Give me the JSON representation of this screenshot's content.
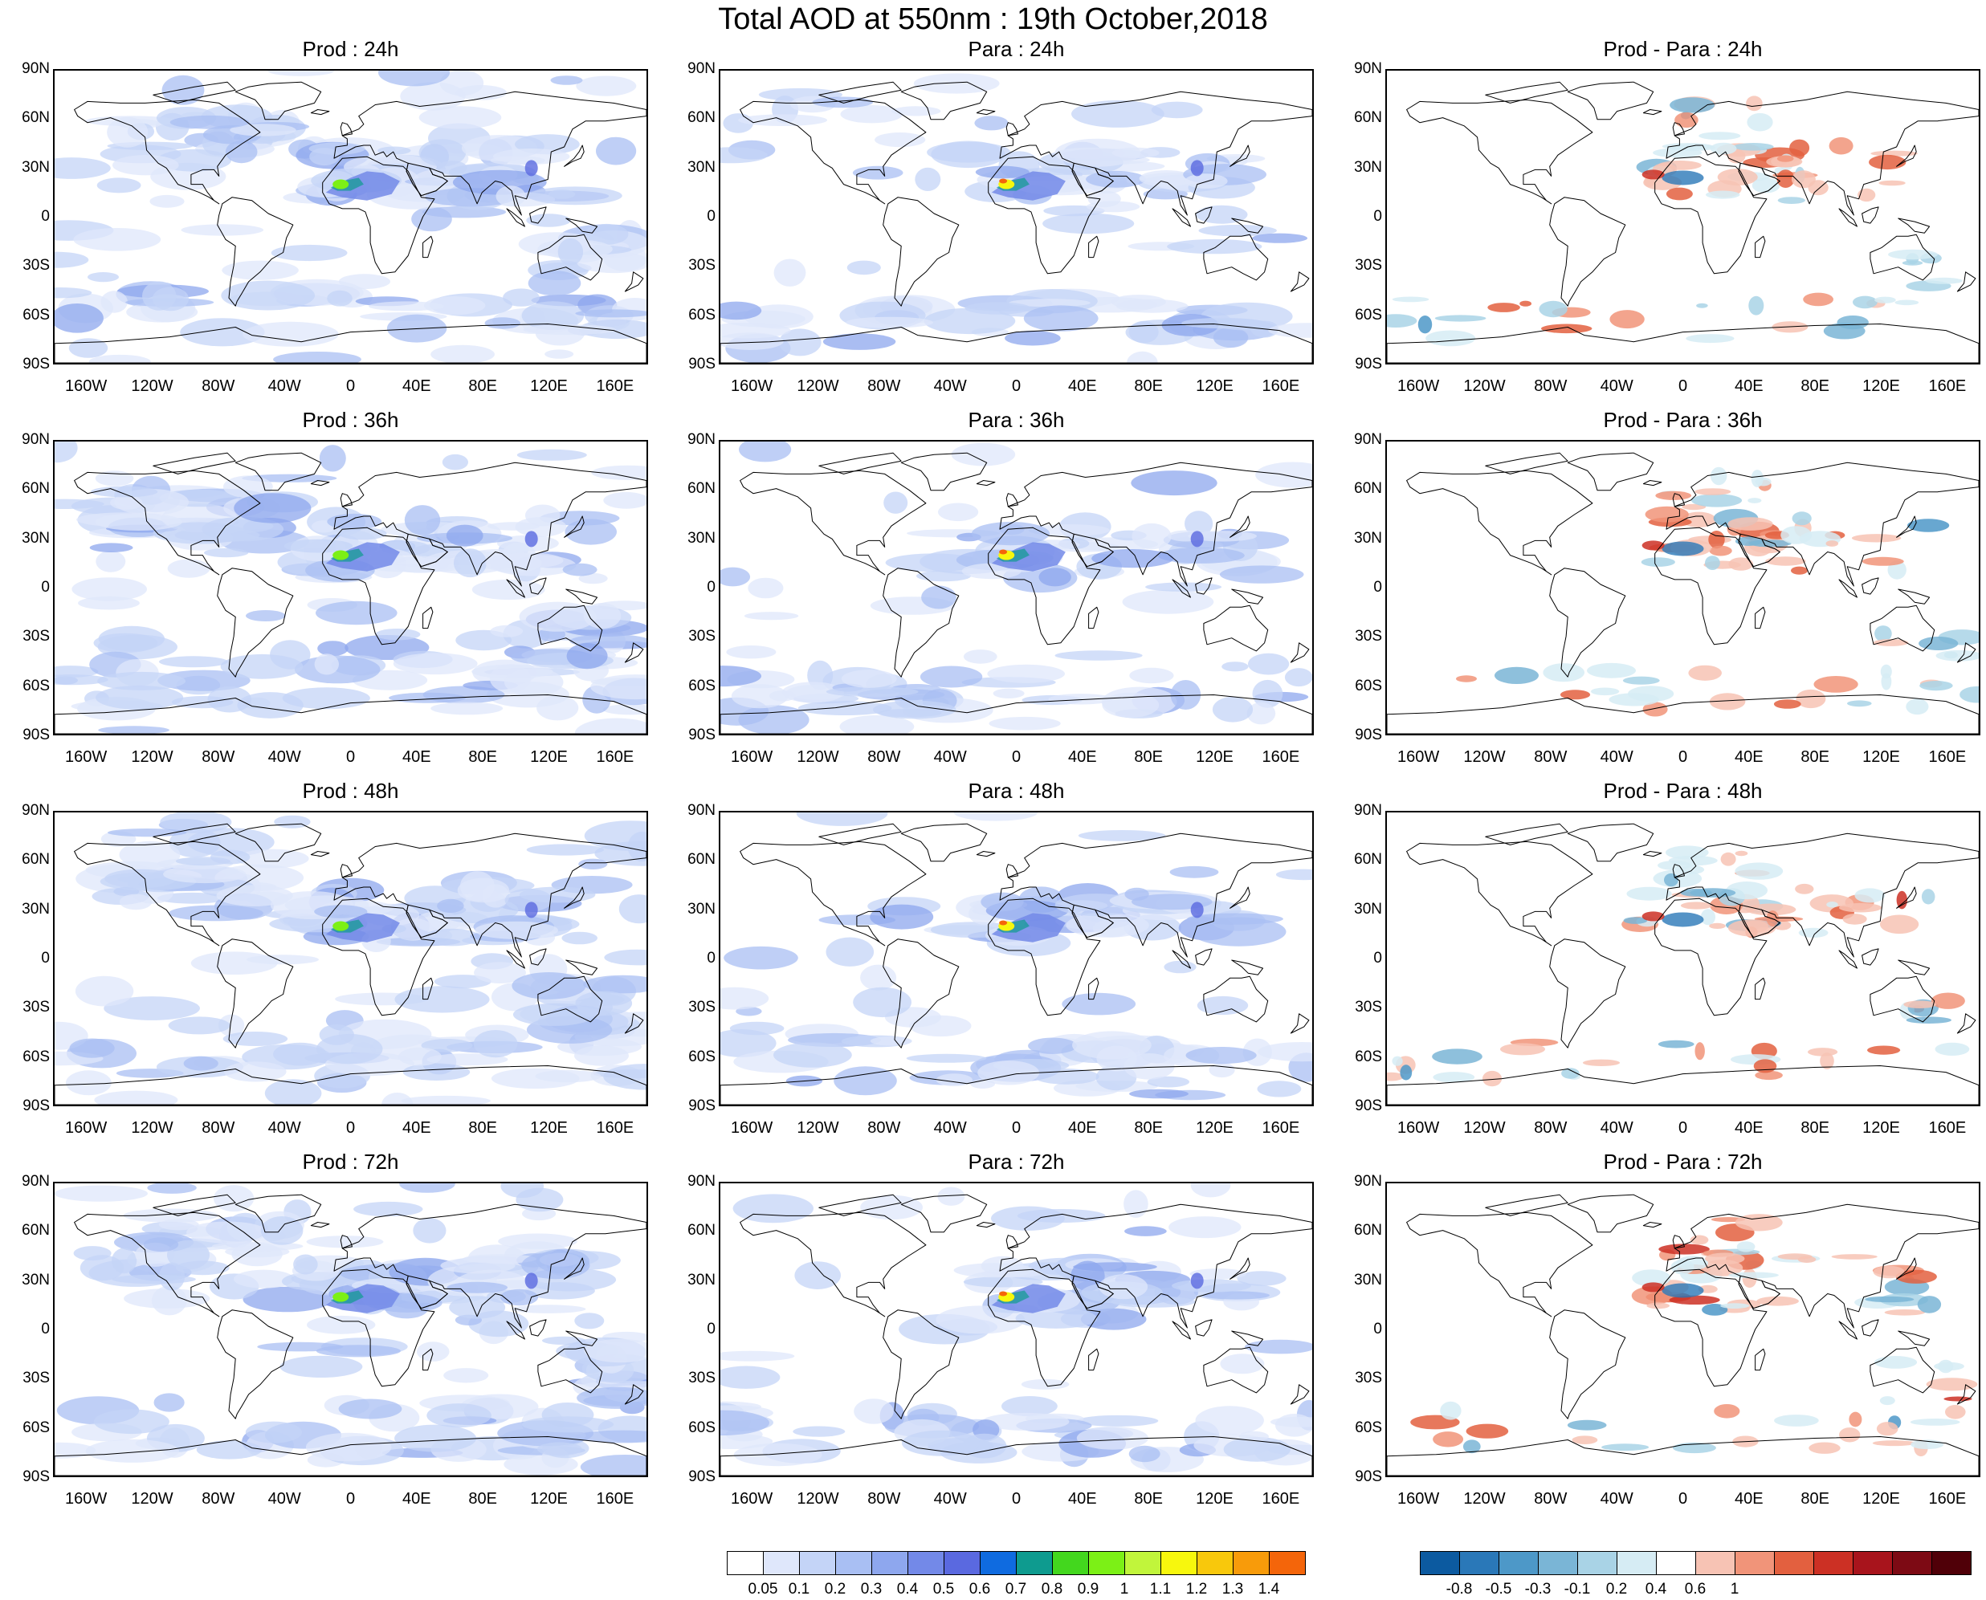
{
  "title": "Total AOD at 550nm : 19th October,2018",
  "panels": [
    {
      "title": "Prod : 24h",
      "type": "prod"
    },
    {
      "title": "Para : 24h",
      "type": "para"
    },
    {
      "title": "Prod - Para : 24h",
      "type": "diff"
    },
    {
      "title": "Prod : 36h",
      "type": "prod"
    },
    {
      "title": "Para : 36h",
      "type": "para"
    },
    {
      "title": "Prod - Para : 36h",
      "type": "diff"
    },
    {
      "title": "Prod : 48h",
      "type": "prod"
    },
    {
      "title": "Para : 48h",
      "type": "para"
    },
    {
      "title": "Prod - Para : 48h",
      "type": "diff"
    },
    {
      "title": "Prod : 72h",
      "type": "prod"
    },
    {
      "title": "Para : 72h",
      "type": "para"
    },
    {
      "title": "Prod - Para : 72h",
      "type": "diff"
    }
  ],
  "axes": {
    "lat_labels": [
      "90N",
      "60N",
      "30N",
      "0",
      "30S",
      "60S",
      "90S"
    ],
    "lat_values": [
      90,
      60,
      30,
      0,
      -30,
      -60,
      -90
    ],
    "lon_labels": [
      "160W",
      "120W",
      "80W",
      "40W",
      "0",
      "40E",
      "80E",
      "120E",
      "160E"
    ],
    "lon_values": [
      -160,
      -120,
      -80,
      -40,
      0,
      40,
      80,
      120,
      160
    ]
  },
  "aod_colorbar": {
    "labels": [
      "0.05",
      "0.1",
      "0.2",
      "0.3",
      "0.4",
      "0.5",
      "0.6",
      "0.7",
      "0.8",
      "0.9",
      "1",
      "1.1",
      "1.2",
      "1.3",
      "1.4"
    ],
    "colors": [
      "#ffffff",
      "#dfe7fb",
      "#c4d4f7",
      "#a9bff3",
      "#8ea7ee",
      "#7389e8",
      "#5a69e0",
      "#0f6be0",
      "#0e9b8f",
      "#43d71e",
      "#7cf016",
      "#c1f53b",
      "#f7f70d",
      "#f8c80c",
      "#f89b0a",
      "#f4650a"
    ]
  },
  "diff_colorbar": {
    "labels": [
      "-0.8",
      "-0.5",
      "-0.3",
      "-0.1",
      "0.2",
      "0.4",
      "0.6",
      "1"
    ],
    "colors": [
      "#0c5aa0",
      "#2a78b8",
      "#4d98c8",
      "#7ab5d6",
      "#a9d3e6",
      "#d6ecf4",
      "#ffffff",
      "#f7c3b4",
      "#f19479",
      "#e3603f",
      "#cc3024",
      "#a8141c",
      "#7d0a14",
      "#500008"
    ]
  }
}
